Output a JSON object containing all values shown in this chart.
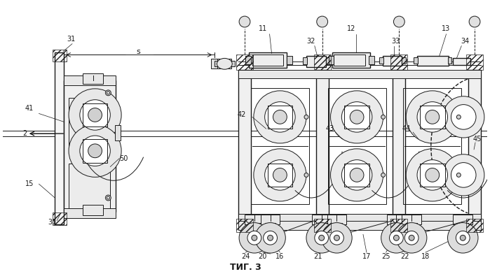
{
  "title": "ΤИГ. 3",
  "bg_color": "#ffffff",
  "line_color": "#000000",
  "fig_width": 6.99,
  "fig_height": 3.92,
  "dpi": 100
}
